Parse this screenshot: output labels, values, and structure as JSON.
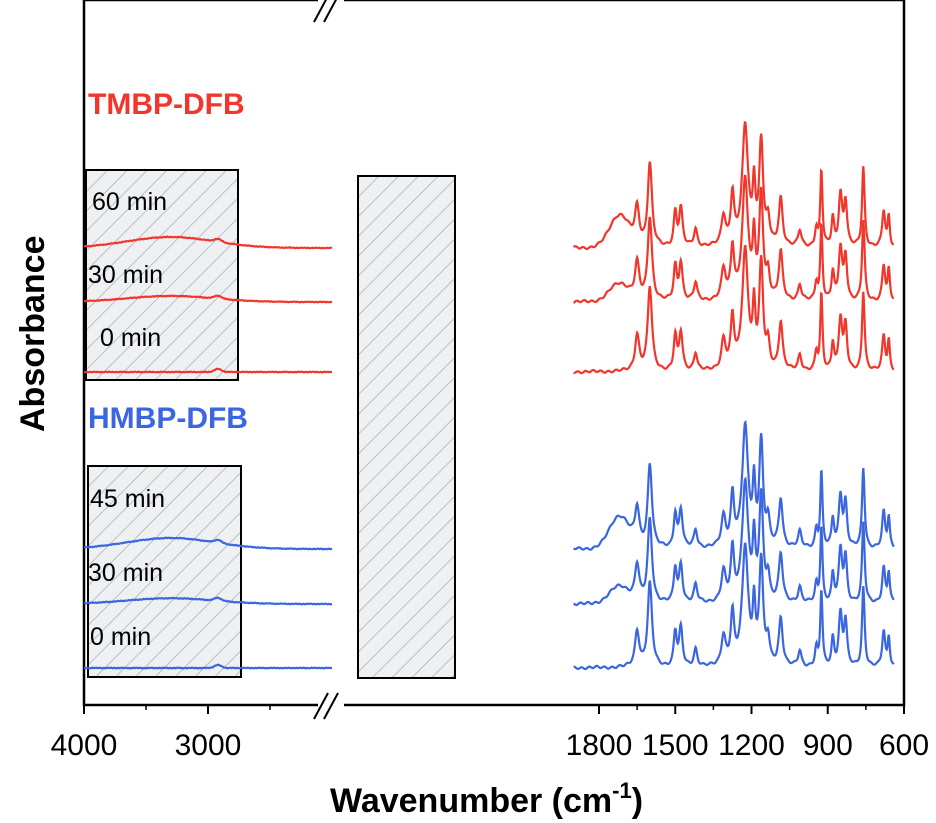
{
  "colors": {
    "tmbp": "#f2362b",
    "hmbp": "#3a66e0",
    "box_hatch": "#a9b4be",
    "box_fill": "#eef0f2",
    "axis": "#000000"
  },
  "chart_data": {
    "type": "line",
    "xlabel": "Wavenumber (cm",
    "xlabel_sup": "-1",
    "xlabel_end": ")",
    "ylabel": "Absorbance",
    "x_axis": {
      "reversed": true,
      "broken": true,
      "segments": [
        {
          "range": [
            4000,
            2000
          ],
          "ticks": [
            4000,
            3000
          ]
        },
        {
          "range": [
            1900,
            600
          ],
          "ticks": [
            1800,
            1500,
            1200,
            900,
            600
          ]
        }
      ]
    },
    "groups": [
      {
        "name": "TMBP-DFB",
        "color_key": "tmbp",
        "traces": [
          {
            "label": "60 min",
            "offset": 2.0
          },
          {
            "label": "30 min",
            "offset": 1.1
          },
          {
            "label": "0 min",
            "offset": 0.0
          }
        ]
      },
      {
        "name": "HMBP-DFB",
        "color_key": "hmbp",
        "traces": [
          {
            "label": "45 min",
            "offset": 2.0
          },
          {
            "label": "30 min",
            "offset": 1.05
          },
          {
            "label": "0 min",
            "offset": 0.0
          }
        ]
      }
    ],
    "fingerprint_peaks": [
      {
        "x": 1600,
        "h": 4.2,
        "w": 10
      },
      {
        "x": 1500,
        "h": 1.7,
        "w": 7
      },
      {
        "x": 1478,
        "h": 1.9,
        "w": 8
      },
      {
        "x": 1420,
        "h": 0.9,
        "w": 8
      },
      {
        "x": 1310,
        "h": 1.5,
        "w": 10
      },
      {
        "x": 1275,
        "h": 2.5,
        "w": 8
      },
      {
        "x": 1225,
        "h": 6.0,
        "w": 14
      },
      {
        "x": 1190,
        "h": 2.8,
        "w": 6
      },
      {
        "x": 1162,
        "h": 5.2,
        "w": 9
      },
      {
        "x": 1135,
        "h": 1.2,
        "w": 8
      },
      {
        "x": 1085,
        "h": 2.4,
        "w": 9
      },
      {
        "x": 1010,
        "h": 0.8,
        "w": 8
      },
      {
        "x": 945,
        "h": 0.9,
        "w": 6
      },
      {
        "x": 925,
        "h": 3.8,
        "w": 5
      },
      {
        "x": 880,
        "h": 1.4,
        "w": 6
      },
      {
        "x": 850,
        "h": 2.6,
        "w": 8
      },
      {
        "x": 830,
        "h": 2.2,
        "w": 7
      },
      {
        "x": 760,
        "h": 4.0,
        "w": 6
      },
      {
        "x": 680,
        "h": 1.8,
        "w": 7
      },
      {
        "x": 660,
        "h": 1.5,
        "w": 5
      }
    ],
    "carbonyl_peak": {
      "x": 1650,
      "h": 1.8,
      "w": 10
    },
    "broad_band_high": {
      "x": 3300,
      "h": 0.55,
      "w": 500
    },
    "broad_band_mid": {
      "x": 1720,
      "h": 1.6,
      "w": 55
    }
  }
}
